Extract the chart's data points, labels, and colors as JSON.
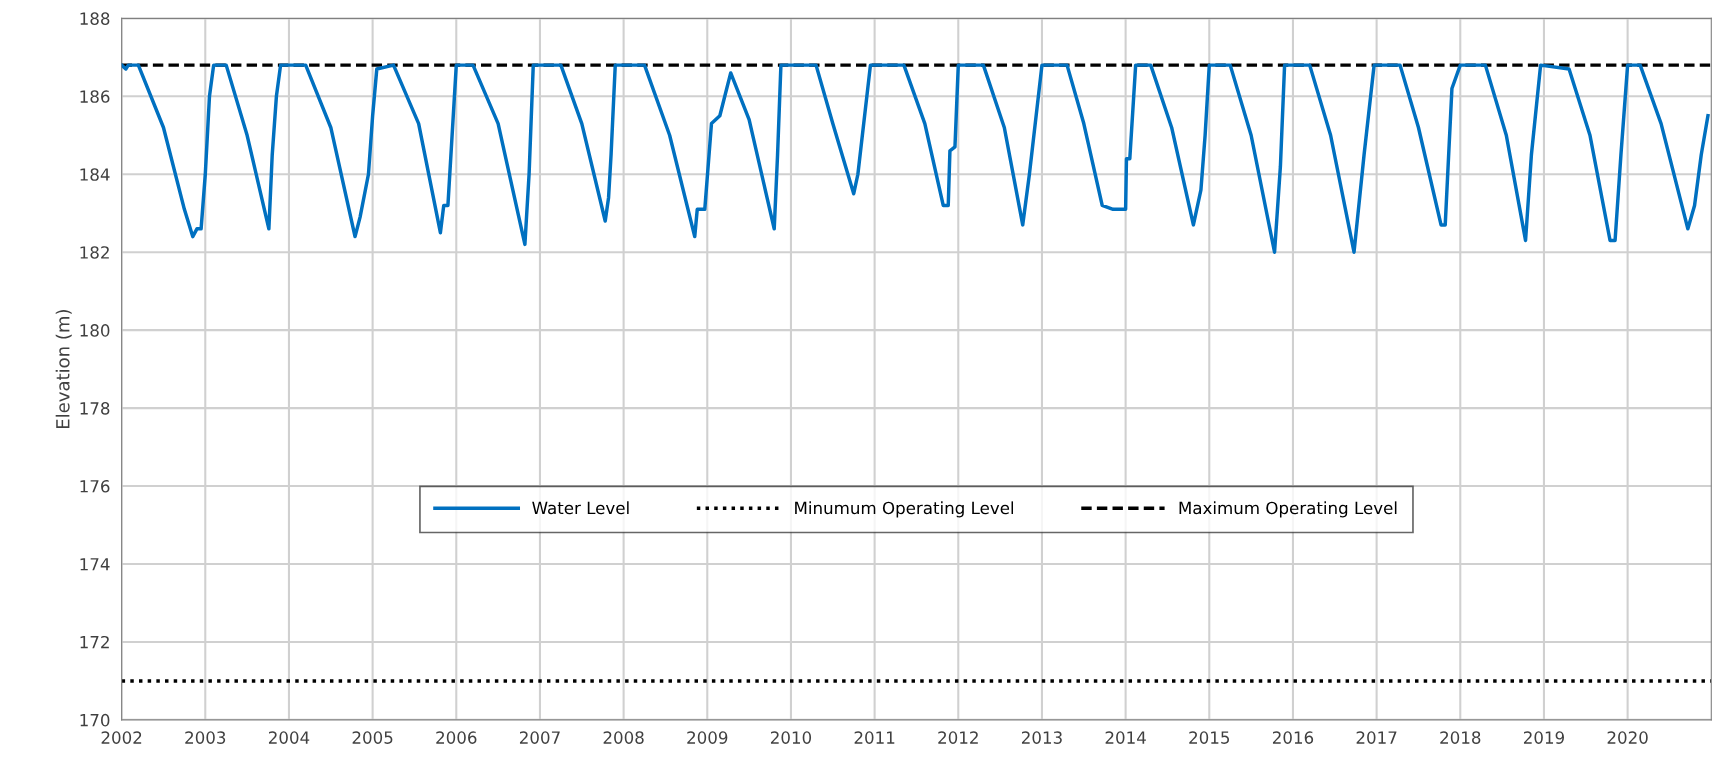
{
  "chart_data": {
    "type": "line",
    "ylabel": "Elevation (m)",
    "series": [
      {
        "name": "Water Level",
        "color": "#0070c0",
        "line_style": "solid",
        "x": [
          2002.0,
          2002.05,
          2002.08,
          2002.2,
          2002.5,
          2002.75,
          2002.85,
          2002.9,
          2002.95,
          2003.0,
          2003.05,
          2003.1,
          2003.25,
          2003.5,
          2003.76,
          2003.8,
          2003.85,
          2003.9,
          2004.2,
          2004.5,
          2004.79,
          2004.85,
          2004.95,
          2005.0,
          2005.05,
          2005.25,
          2005.55,
          2005.81,
          2005.85,
          2005.9,
          2006.0,
          2006.2,
          2006.5,
          2006.82,
          2006.87,
          2006.92,
          2007.25,
          2007.5,
          2007.78,
          2007.82,
          2007.85,
          2007.9,
          2008.25,
          2008.55,
          2008.85,
          2008.88,
          2008.97,
          2009.05,
          2009.15,
          2009.28,
          2009.5,
          2009.8,
          2009.84,
          2009.88,
          2010.3,
          2010.5,
          2010.75,
          2010.8,
          2010.95,
          2011.35,
          2011.6,
          2011.82,
          2011.88,
          2011.9,
          2011.96,
          2012.0,
          2012.3,
          2012.55,
          2012.77,
          2012.85,
          2013.0,
          2013.3,
          2013.5,
          2013.72,
          2013.85,
          2014.0,
          2014.01,
          2014.05,
          2014.12,
          2014.3,
          2014.55,
          2014.81,
          2014.9,
          2014.95,
          2015.0,
          2015.25,
          2015.5,
          2015.78,
          2015.85,
          2015.9,
          2016.2,
          2016.45,
          2016.73,
          2016.85,
          2016.97,
          2017.28,
          2017.5,
          2017.77,
          2017.82,
          2017.9,
          2018.0,
          2018.3,
          2018.55,
          2018.78,
          2018.85,
          2018.96,
          2019.3,
          2019.55,
          2019.79,
          2019.85,
          2019.92,
          2020.0,
          2020.15,
          2020.4,
          2020.72,
          2020.8,
          2020.88,
          2020.96
        ],
        "values": [
          186.8,
          186.7,
          186.8,
          186.8,
          185.2,
          183.1,
          182.4,
          182.6,
          182.6,
          184.0,
          186.0,
          186.8,
          186.8,
          185.0,
          182.6,
          184.5,
          186.0,
          186.8,
          186.8,
          185.2,
          182.4,
          182.9,
          184.0,
          185.5,
          186.7,
          186.8,
          185.3,
          182.5,
          183.2,
          183.2,
          186.8,
          186.8,
          185.3,
          182.2,
          184.0,
          186.8,
          186.8,
          185.3,
          182.8,
          183.4,
          184.5,
          186.8,
          186.8,
          185.0,
          182.4,
          183.1,
          183.1,
          185.3,
          185.5,
          186.6,
          185.4,
          182.6,
          184.5,
          186.8,
          186.8,
          185.3,
          183.5,
          184.0,
          186.8,
          186.8,
          185.3,
          183.2,
          183.2,
          184.6,
          184.7,
          186.8,
          186.8,
          185.2,
          182.7,
          184.0,
          186.8,
          186.8,
          185.3,
          183.2,
          183.1,
          183.1,
          184.4,
          184.4,
          186.8,
          186.8,
          185.2,
          182.7,
          183.6,
          185.0,
          186.8,
          186.8,
          185.0,
          182.0,
          184.2,
          186.8,
          186.8,
          185.0,
          182.0,
          184.5,
          186.8,
          186.8,
          185.2,
          182.7,
          182.7,
          186.2,
          186.8,
          186.8,
          185.0,
          182.3,
          184.5,
          186.8,
          186.7,
          185.0,
          182.3,
          182.3,
          184.5,
          186.8,
          186.8,
          185.3,
          182.6,
          183.2,
          184.5,
          185.5
        ]
      }
    ],
    "ref_lines": [
      {
        "axis": "y",
        "value": 171,
        "label": "Minumum Operating Level",
        "color": "#000000",
        "line_style": "dotted"
      },
      {
        "axis": "y",
        "value": 186.8,
        "label": "Maximum Operating Level",
        "color": "#000000",
        "line_style": "dashed"
      }
    ],
    "xlim": [
      2002,
      2021
    ],
    "xticks": [
      2002,
      2003,
      2004,
      2005,
      2006,
      2007,
      2008,
      2009,
      2010,
      2011,
      2012,
      2013,
      2014,
      2015,
      2016,
      2017,
      2018,
      2019,
      2020
    ],
    "ylim": [
      170,
      188
    ],
    "yticks": [
      170,
      172,
      174,
      176,
      178,
      180,
      182,
      184,
      186,
      188
    ],
    "grid": true,
    "legend": "center",
    "marker": "none"
  }
}
